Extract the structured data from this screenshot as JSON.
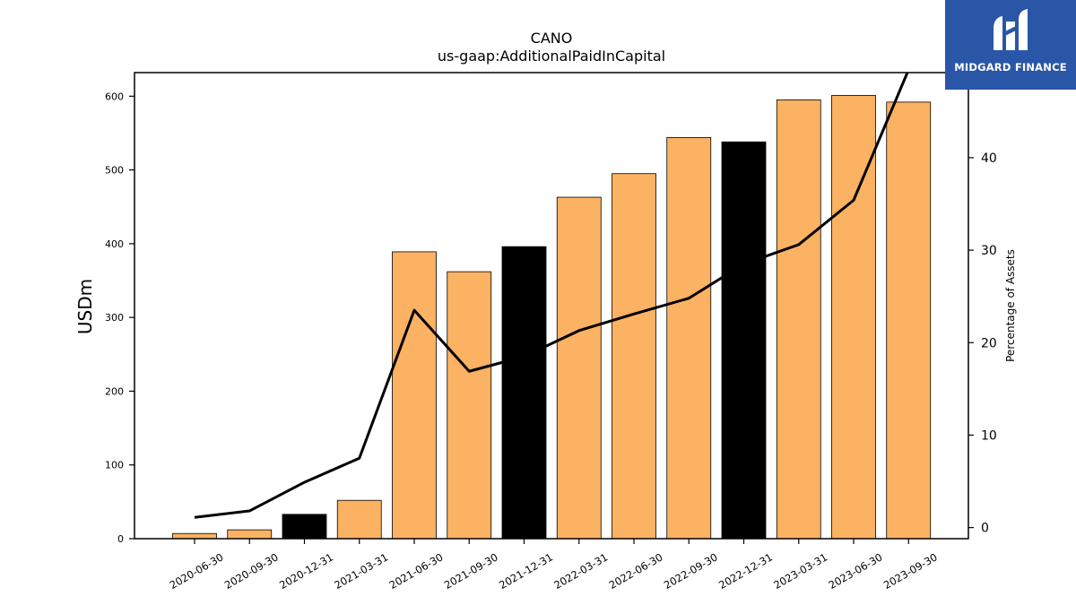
{
  "title": "CANO",
  "subtitle": "us-gaap:AdditionalPaidInCapital",
  "logo_text": "MIDGARD FINANCE",
  "colors": {
    "bar": "#fbb262",
    "bar_highlight": "#000000",
    "line": "#000000",
    "logo_bg": "#2a56a8"
  },
  "chart_data": {
    "type": "bar",
    "title": "CANO",
    "subtitle": "us-gaap:AdditionalPaidInCapital",
    "ylabel": "USDm",
    "y2label": "Percentage of Assets",
    "ylim": [
      0,
      632
    ],
    "y2lim": [
      -1.2,
      49.2
    ],
    "yticks": [
      0,
      100,
      200,
      300,
      400,
      500,
      600
    ],
    "y2ticks": [
      0,
      10,
      20,
      30,
      40
    ],
    "categories": [
      "2020-06-30",
      "2020-09-30",
      "2020-12-31",
      "2021-03-31",
      "2021-06-30",
      "2021-09-30",
      "2021-12-31",
      "2022-03-31",
      "2022-06-30",
      "2022-09-30",
      "2022-12-31",
      "2023-03-31",
      "2023-06-30",
      "2023-09-30"
    ],
    "highlight": [
      false,
      false,
      true,
      false,
      false,
      false,
      true,
      false,
      false,
      false,
      true,
      false,
      false,
      false
    ],
    "series": [
      {
        "type": "bar",
        "axis": "left",
        "values": [
          7,
          12,
          33,
          52,
          389,
          362,
          396,
          463,
          495,
          544,
          538,
          595,
          601,
          592
        ]
      },
      {
        "type": "line",
        "axis": "right",
        "values": [
          1.1,
          1.8,
          4.9,
          7.5,
          23.5,
          16.9,
          18.5,
          21.3,
          23.1,
          24.8,
          28.5,
          30.6,
          35.4,
          49.5
        ]
      }
    ]
  }
}
